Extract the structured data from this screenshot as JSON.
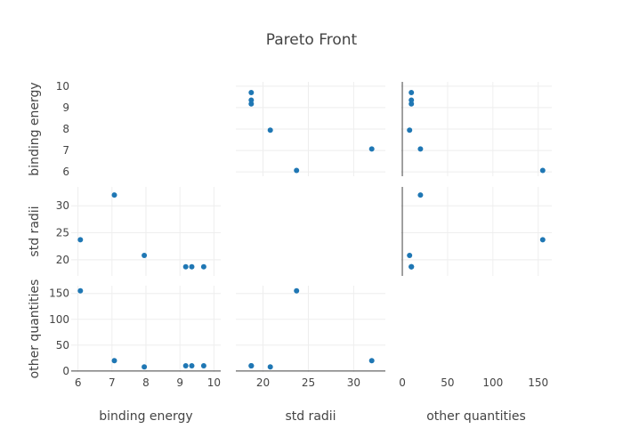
{
  "chart_data": {
    "type": "scatter",
    "chart_type": "scatter-matrix",
    "title": "Pareto Front",
    "marker_color": "#1f77b4",
    "grid": true,
    "dimensions": [
      {
        "key": "binding_energy",
        "label": "binding energy",
        "range": [
          5.8,
          10.2
        ],
        "ticks_x": [
          6,
          7,
          8,
          9,
          10
        ],
        "ticks_y": [
          6,
          7,
          8,
          9,
          10
        ],
        "values": [
          6.07,
          7.07,
          7.95,
          9.17,
          9.35,
          9.7
        ]
      },
      {
        "key": "std_radii",
        "label": "std radii",
        "range": [
          17.0,
          33.5
        ],
        "ticks_x": [
          20,
          25,
          30
        ],
        "ticks_y": [
          20,
          25,
          30
        ],
        "values": [
          23.7,
          32.0,
          20.8,
          18.7,
          18.7,
          18.7
        ]
      },
      {
        "key": "other_quantities",
        "label": "other quantities",
        "range": [
          -2,
          165
        ],
        "ticks_x": [
          0,
          50,
          100,
          150
        ],
        "ticks_y": [
          0,
          50,
          100,
          150
        ],
        "values": [
          155,
          20,
          8,
          10,
          10,
          10
        ]
      }
    ],
    "diagonal_visible": false
  }
}
